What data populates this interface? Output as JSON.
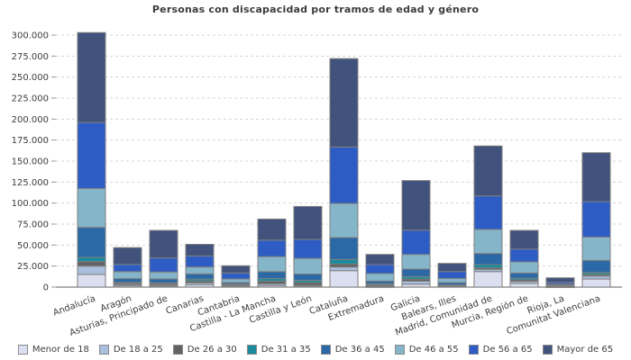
{
  "title": "Personas con discapacidad por tramos de edad y género",
  "chart_data": {
    "type": "bar",
    "stacked": true,
    "title": "Personas con discapacidad por tramos de edad y género",
    "xlabel": "",
    "ylabel": "",
    "ylim": [
      0,
      300000
    ],
    "ytick_step": 25000,
    "grid": "horizontal-dashed",
    "legend_position": "bottom",
    "categories": [
      "Andalucía",
      "Aragón",
      "Asturias, Principado de",
      "Canarias",
      "Cantabria",
      "Castilla - La Mancha",
      "Castilla y León",
      "Cataluña",
      "Extremadura",
      "Galicia",
      "Balears, Illes",
      "Madrid, Comunidad de",
      "Murcia, Región de",
      "Rioja, La",
      "Comunitat Valenciana"
    ],
    "series": [
      {
        "name": "Menor de 18",
        "color": "#dcdfef",
        "values": [
          15000,
          1500,
          1200,
          2600,
          900,
          1800,
          1200,
          19600,
          500,
          3500,
          800,
          18500,
          4300,
          400,
          9600
        ]
      },
      {
        "name": "De 18 a 25",
        "color": "#aabedd",
        "values": [
          10000,
          1500,
          1300,
          2400,
          800,
          2100,
          1000,
          4300,
          600,
          3600,
          600,
          2600,
          2500,
          350,
          3600
        ]
      },
      {
        "name": "De 26 a 30",
        "color": "#636363",
        "values": [
          5400,
          1700,
          1700,
          2300,
          900,
          3200,
          3200,
          3600,
          1400,
          2500,
          600,
          1800,
          1800,
          350,
          1800
        ]
      },
      {
        "name": "De 31 a 35",
        "color": "#1a8a9c",
        "values": [
          5000,
          800,
          900,
          2300,
          800,
          3200,
          2700,
          5400,
          1500,
          2900,
          500,
          3900,
          2100,
          300,
          2500
        ]
      },
      {
        "name": "De 36 a 45",
        "color": "#2a69a5",
        "values": [
          35600,
          4600,
          4600,
          6100,
          2000,
          8100,
          7500,
          26000,
          3200,
          8900,
          2900,
          13200,
          6100,
          950,
          14300
        ]
      },
      {
        "name": "De 46 a 55",
        "color": "#85b5c8",
        "values": [
          46500,
          8300,
          8300,
          8200,
          4300,
          17900,
          18600,
          40700,
          8900,
          17500,
          5000,
          28600,
          13200,
          1100,
          27800
        ]
      },
      {
        "name": "De 56 a 65",
        "color": "#2e5cc5",
        "values": [
          78500,
          8600,
          16700,
          13200,
          7200,
          19600,
          22500,
          67200,
          10700,
          28900,
          8100,
          40000,
          15300,
          2300,
          42200
        ]
      },
      {
        "name": "Mayor de 65",
        "color": "#41527c",
        "values": [
          107000,
          20000,
          32800,
          13800,
          8500,
          25100,
          39300,
          105200,
          12100,
          59000,
          9700,
          59400,
          22200,
          5300,
          58200
        ]
      }
    ],
    "ytick_labels": [
      "0",
      "25.000",
      "50.000",
      "75.000",
      "100.000",
      "125.000",
      "150.000",
      "175.000",
      "200.000",
      "225.000",
      "250.000",
      "275.000",
      "300.000"
    ]
  },
  "colors": {
    "grid": "#d4d4d4",
    "axis": "#808080",
    "tick": "#999999",
    "text": "#3c3c3c",
    "bar_border": "#7f7f7f"
  }
}
